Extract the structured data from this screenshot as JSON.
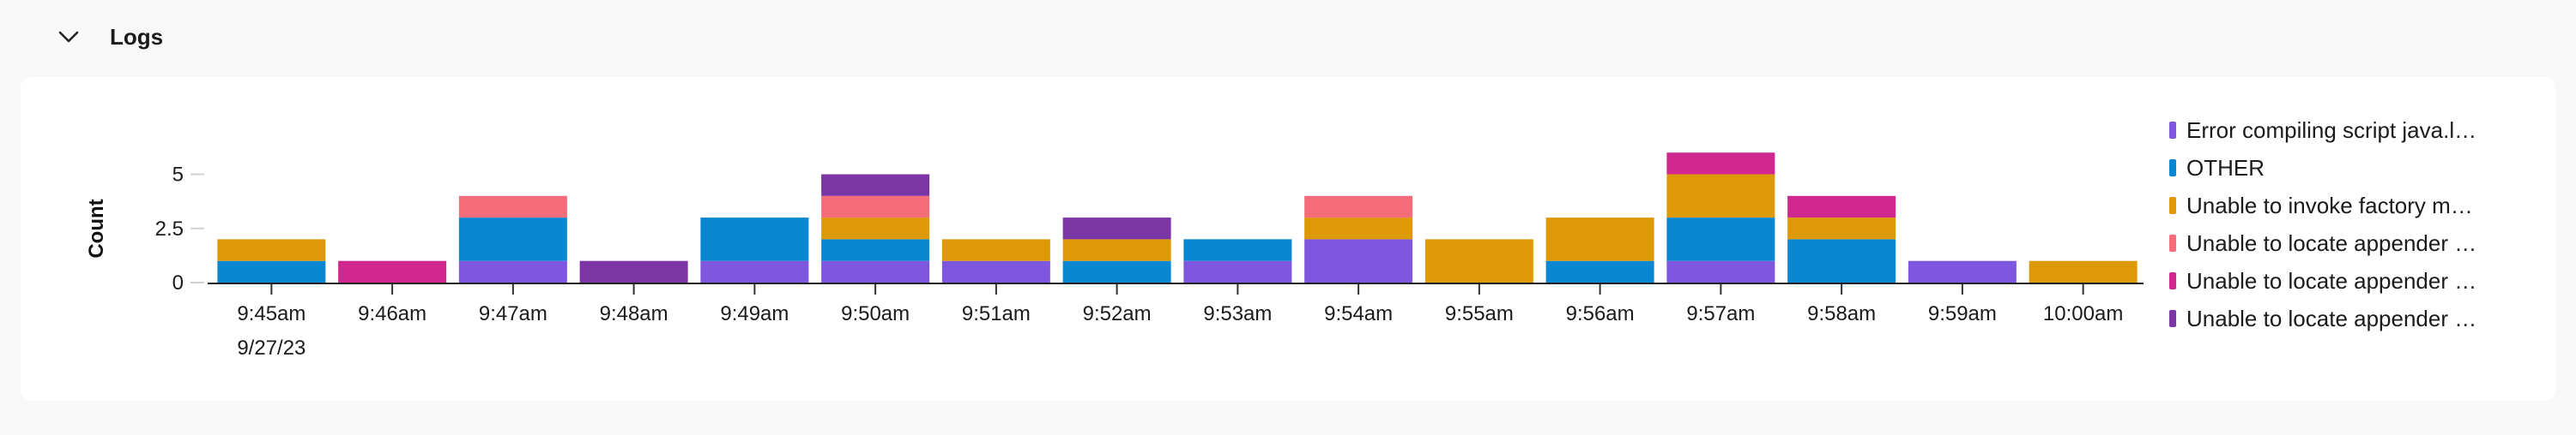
{
  "section": {
    "title": "Logs",
    "icon": "chevron-down-icon"
  },
  "chart_data": {
    "type": "bar",
    "stacked": true,
    "title": "",
    "xlabel": "",
    "ylabel": "Count",
    "ylim": [
      0,
      6
    ],
    "yticks": [
      {
        "value": 0,
        "label": "0"
      },
      {
        "value": 2.5,
        "label": "2.5"
      },
      {
        "value": 5,
        "label": "5"
      }
    ],
    "categories": [
      "9:45am",
      "9:46am",
      "9:47am",
      "9:48am",
      "9:49am",
      "9:50am",
      "9:51am",
      "9:52am",
      "9:53am",
      "9:54am",
      "9:55am",
      "9:56am",
      "9:57am",
      "9:58am",
      "9:59am",
      "10:00am"
    ],
    "date_label": "9/27/23",
    "legend_position": "right",
    "series": [
      {
        "name": "Error compiling script java.l…",
        "color": "#7f57df",
        "values": [
          0,
          0,
          1,
          0,
          1,
          1,
          1,
          0,
          1,
          2,
          0,
          0,
          1,
          0,
          1,
          0
        ]
      },
      {
        "name": "OTHER",
        "color": "#0a87d2",
        "values": [
          1,
          0,
          2,
          0,
          2,
          1,
          0,
          1,
          1,
          0,
          0,
          1,
          2,
          2,
          0,
          0
        ]
      },
      {
        "name": "Unable to invoke factory m…",
        "color": "#dd9a06",
        "values": [
          1,
          0,
          0,
          0,
          0,
          1,
          1,
          1,
          0,
          1,
          2,
          2,
          2,
          1,
          0,
          1
        ]
      },
      {
        "name": "Unable to locate appender …",
        "color": "#f56c7a",
        "values": [
          0,
          0,
          1,
          0,
          0,
          1,
          0,
          0,
          0,
          1,
          0,
          0,
          0,
          0,
          0,
          0
        ]
      },
      {
        "name": "Unable to locate appender …",
        "color": "#d1288f",
        "values": [
          0,
          1,
          0,
          0,
          0,
          0,
          0,
          0,
          0,
          0,
          0,
          0,
          1,
          1,
          0,
          0
        ]
      },
      {
        "name": "Unable to locate appender …",
        "color": "#7c35a4",
        "values": [
          0,
          0,
          0,
          1,
          0,
          1,
          0,
          1,
          0,
          0,
          0,
          0,
          0,
          0,
          0,
          0
        ]
      }
    ]
  }
}
